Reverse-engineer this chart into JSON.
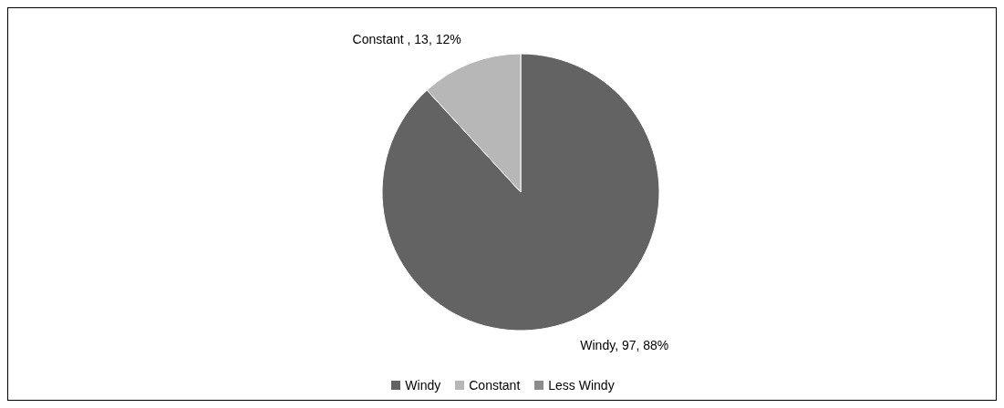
{
  "chart_data": {
    "type": "pie",
    "categories": [
      "Windy",
      "Constant",
      "Less Windy"
    ],
    "values": [
      97,
      13,
      0
    ],
    "colors": [
      "#636363",
      "#b7b7b7",
      "#8c8c8c"
    ],
    "value_labels": [
      "Windy, 97, 88%",
      "Constant , 13, 12%",
      null
    ],
    "legend": "bottom"
  }
}
